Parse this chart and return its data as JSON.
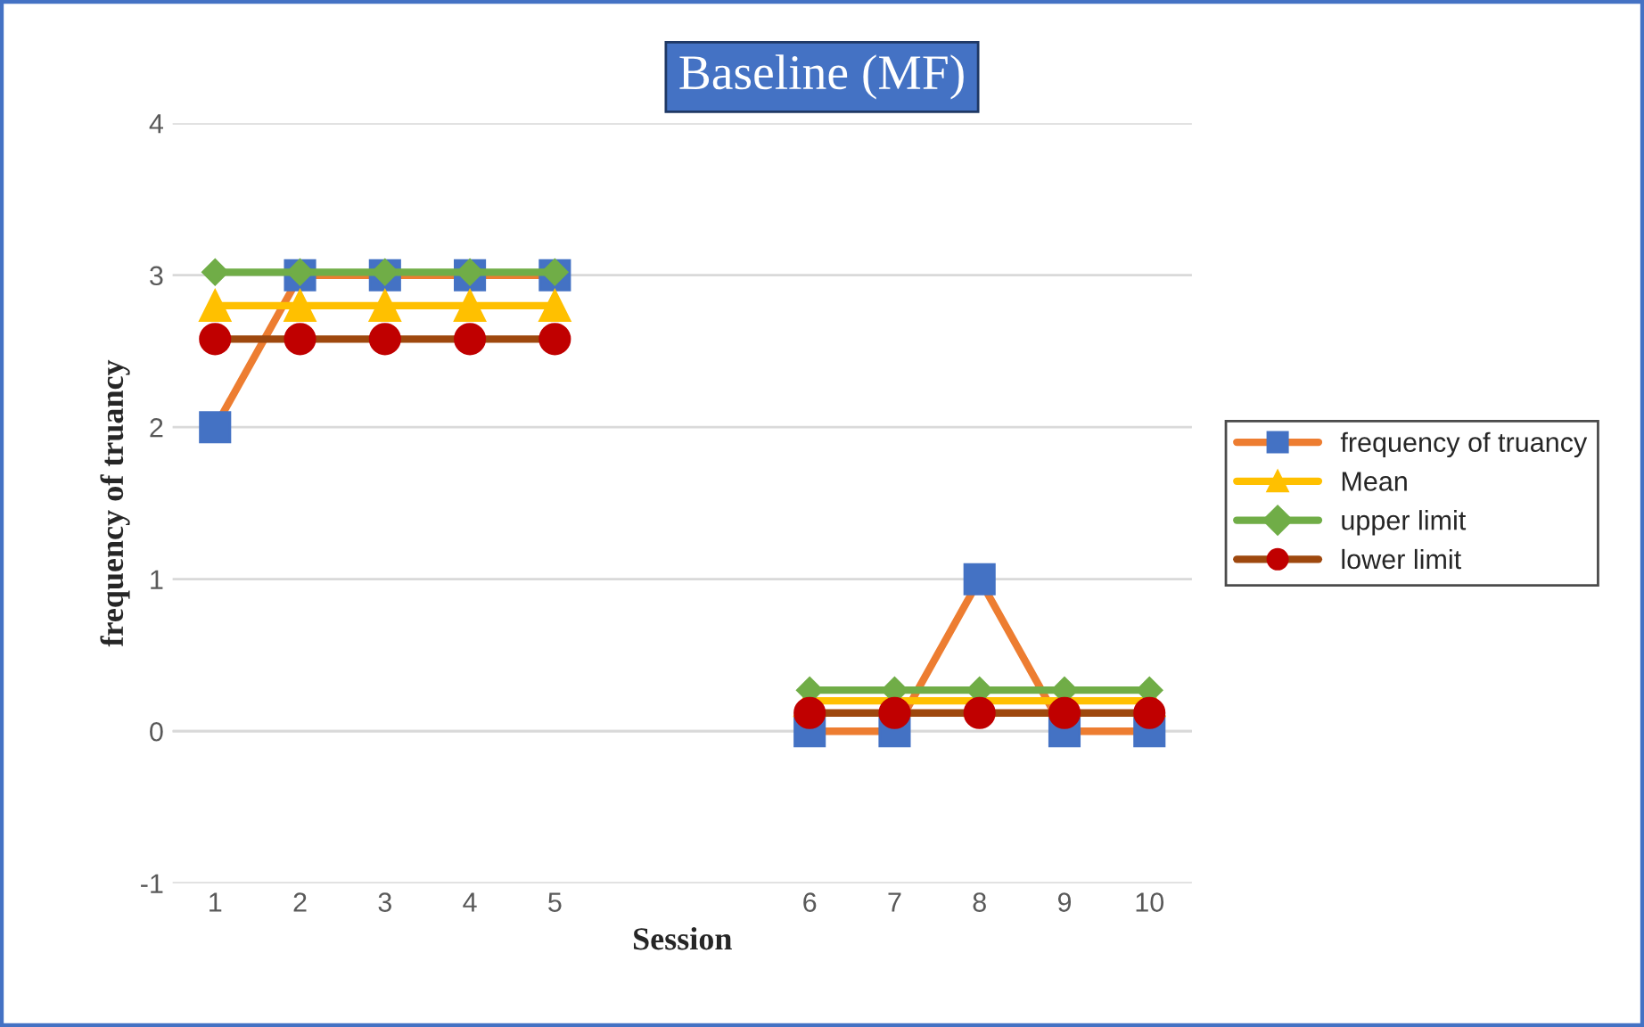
{
  "chart_data": {
    "type": "line",
    "title": "Baseline (MF)",
    "xlabel": "Session",
    "ylabel": "frequency of truancy",
    "categories": [
      "1",
      "2",
      "3",
      "4",
      "5",
      null,
      null,
      "6",
      "7",
      "8",
      "9",
      "10"
    ],
    "series": [
      {
        "name": "frequency of truancy",
        "color": "#ed7d31",
        "colors": [
          "#4472c4",
          "#4472c4",
          "#4472c4",
          "#4472c4",
          "#4472c4",
          null,
          null,
          "#4472c4",
          "#4472c4",
          "#4472c4",
          "#4472c4",
          "#4472c4"
        ],
        "marker": "square",
        "values": [
          2,
          3,
          3,
          3,
          3,
          null,
          null,
          0,
          0,
          1,
          0,
          0
        ]
      },
      {
        "name": "Mean",
        "color": "#ffc000",
        "marker": "triangle",
        "values": [
          2.8,
          2.8,
          2.8,
          2.8,
          2.8,
          null,
          null,
          0.2,
          0.2,
          0.2,
          0.2,
          0.2
        ]
      },
      {
        "name": "upper limit",
        "color": "#70ad47",
        "marker": "diamond",
        "values": [
          3.02,
          3.02,
          3.02,
          3.02,
          3.02,
          null,
          null,
          0.27,
          0.27,
          0.27,
          0.27,
          0.27
        ]
      },
      {
        "name": "lower limit",
        "color": "#9e480e",
        "colors": [
          "#c00000",
          "#c00000",
          "#c00000",
          "#c00000",
          "#c00000",
          null,
          null,
          "#c00000",
          "#c00000",
          "#c00000",
          "#c00000",
          "#c00000"
        ],
        "marker": "circle",
        "values": [
          2.58,
          2.58,
          2.58,
          2.58,
          2.58,
          null,
          null,
          0.12,
          0.12,
          0.12,
          0.12,
          0.12
        ]
      }
    ],
    "ylim": [
      -1,
      4
    ],
    "yticks": [
      -1,
      0,
      1,
      2,
      3,
      4
    ],
    "grid": "y",
    "legend": "right"
  }
}
